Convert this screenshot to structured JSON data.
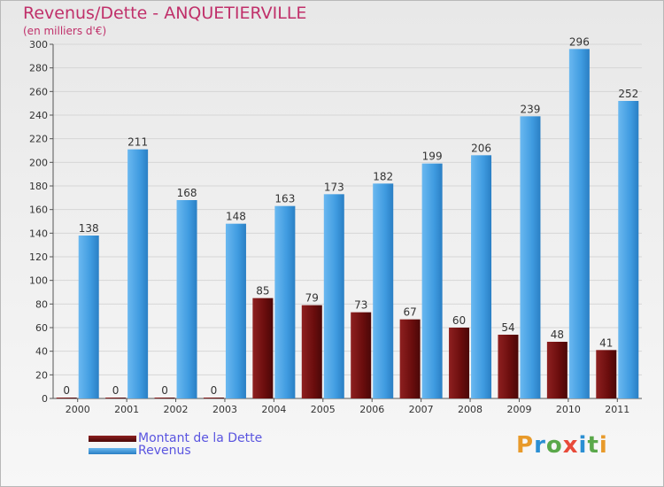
{
  "title": "Revenus/Dette - ANQUETIERVILLE",
  "subtitle": "(en milliers d'€)",
  "logo": {
    "text": "Proxiti",
    "colors": [
      "#e89a2a",
      "#2b8fd3",
      "#5aa84a",
      "#e84a3a",
      "#2b8fd3",
      "#5aa84a",
      "#e89a2a"
    ]
  },
  "chart_data": {
    "type": "bar",
    "title": "Revenus/Dette - ANQUETIERVILLE",
    "ylabel": "(en milliers d'€)",
    "xlabel": "",
    "ylim": [
      0,
      300
    ],
    "yticks": [
      0,
      20,
      40,
      60,
      80,
      100,
      120,
      140,
      160,
      180,
      200,
      220,
      240,
      260,
      280,
      300
    ],
    "grid": true,
    "legend_position": "bottom-left",
    "categories": [
      "2000",
      "2001",
      "2002",
      "2003",
      "2004",
      "2005",
      "2006",
      "2007",
      "2008",
      "2009",
      "2010",
      "2011"
    ],
    "series": [
      {
        "name": "Montant de la Dette",
        "color": "#7a0f0f",
        "values": [
          0,
          0,
          0,
          0,
          85,
          79,
          73,
          67,
          60,
          54,
          48,
          41
        ]
      },
      {
        "name": "Revenus",
        "color": "#3f9be0",
        "values": [
          138,
          211,
          168,
          148,
          163,
          173,
          182,
          199,
          206,
          239,
          296,
          252
        ]
      }
    ]
  }
}
